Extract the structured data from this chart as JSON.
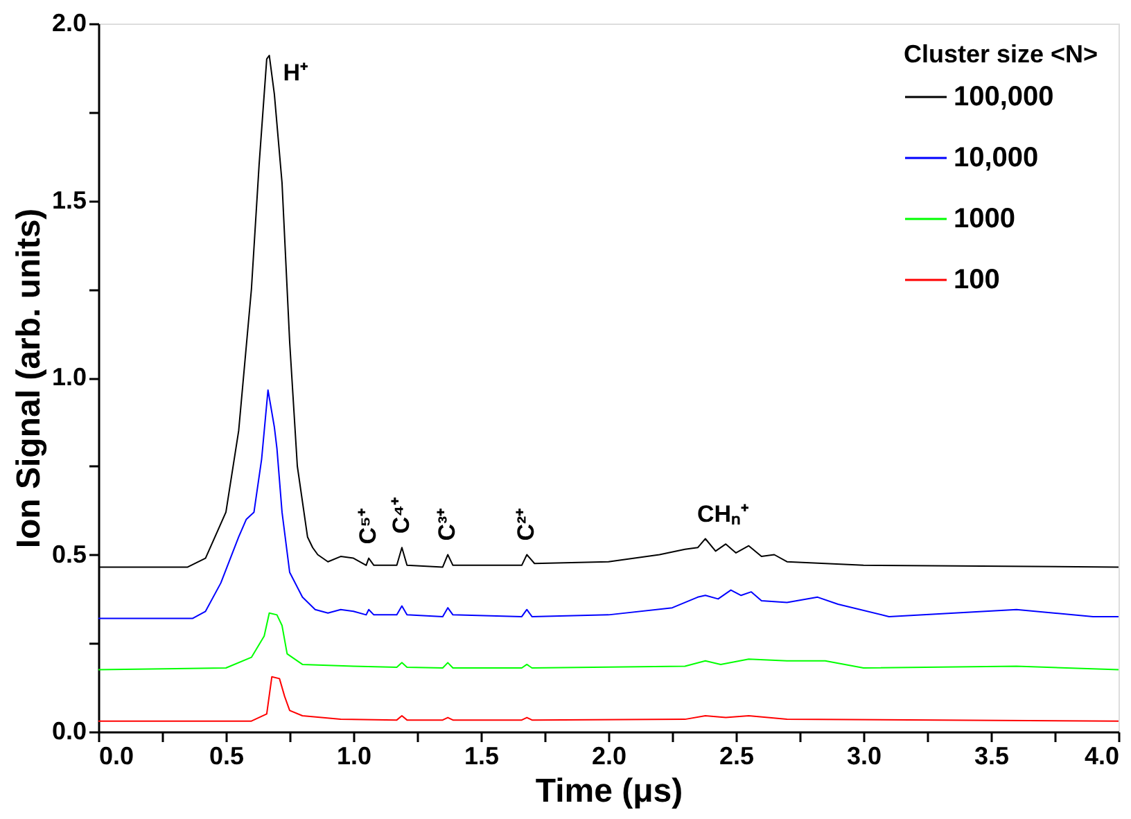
{
  "chart_data": {
    "type": "line",
    "xlabel": "Time (μs)",
    "ylabel": "Ion Signal (arb. units)",
    "legend_title": "Cluster size <N>",
    "legend": "top right",
    "grid": false,
    "line_style": "solid",
    "xlim": [
      0,
      4
    ],
    "ylim": [
      0,
      2
    ],
    "xticks": [
      {
        "value": 0,
        "label": "0.0"
      },
      {
        "value": 0.25,
        "label": null
      },
      {
        "value": 0.5,
        "label": "0.5"
      },
      {
        "value": 0.75,
        "label": null
      },
      {
        "value": 1,
        "label": "1.0"
      },
      {
        "value": 1.25,
        "label": null
      },
      {
        "value": 1.5,
        "label": "1.5"
      },
      {
        "value": 1.75,
        "label": null
      },
      {
        "value": 2,
        "label": "2.0"
      },
      {
        "value": 2.25,
        "label": null
      },
      {
        "value": 2.5,
        "label": "2.5"
      },
      {
        "value": 2.75,
        "label": null
      },
      {
        "value": 3,
        "label": "3.0"
      },
      {
        "value": 3.25,
        "label": null
      },
      {
        "value": 3.5,
        "label": "3.5"
      },
      {
        "value": 3.75,
        "label": null
      },
      {
        "value": 4,
        "label": "4.0"
      }
    ],
    "yticks": [
      {
        "value": 0,
        "label": "0.0"
      },
      {
        "value": 0.25,
        "label": null
      },
      {
        "value": 0.5,
        "label": "0.5"
      },
      {
        "value": 0.75,
        "label": null
      },
      {
        "value": 1,
        "label": "1.0"
      },
      {
        "value": 1.25,
        "label": null
      },
      {
        "value": 1.5,
        "label": "1.5"
      },
      {
        "value": 1.75,
        "label": null
      },
      {
        "value": 2,
        "label": "2.0"
      }
    ],
    "annotations": [
      {
        "text": "H⁺",
        "x": 0.67,
        "y": 1.91
      },
      {
        "text": "C⁵⁺",
        "x": 1.06,
        "y": 0.49
      },
      {
        "text": "C⁴⁺",
        "x": 1.19,
        "y": 0.52
      },
      {
        "text": "C³⁺",
        "x": 1.37,
        "y": 0.5
      },
      {
        "text": "C²⁺",
        "x": 1.68,
        "y": 0.5
      },
      {
        "text": "CHₙ⁺",
        "x": 2.45,
        "y": 0.53
      }
    ],
    "series": [
      {
        "name": "100,000",
        "color": "#000000",
        "x": [
          0,
          0.35,
          0.42,
          0.5,
          0.55,
          0.6,
          0.63,
          0.66,
          0.67,
          0.69,
          0.72,
          0.75,
          0.78,
          0.82,
          0.84,
          0.86,
          0.9,
          0.95,
          1.0,
          1.05,
          1.06,
          1.08,
          1.17,
          1.19,
          1.21,
          1.35,
          1.37,
          1.39,
          1.66,
          1.68,
          1.71,
          2.0,
          2.2,
          2.3,
          2.35,
          2.38,
          2.42,
          2.46,
          2.5,
          2.55,
          2.6,
          2.65,
          2.7,
          3.0,
          4.0
        ],
        "values": [
          0.465,
          0.465,
          0.49,
          0.62,
          0.85,
          1.25,
          1.6,
          1.9,
          1.91,
          1.8,
          1.55,
          1.1,
          0.75,
          0.55,
          0.52,
          0.5,
          0.48,
          0.495,
          0.49,
          0.47,
          0.49,
          0.47,
          0.47,
          0.52,
          0.47,
          0.465,
          0.5,
          0.47,
          0.47,
          0.5,
          0.475,
          0.48,
          0.5,
          0.515,
          0.52,
          0.545,
          0.51,
          0.53,
          0.505,
          0.525,
          0.495,
          0.5,
          0.48,
          0.47,
          0.465
        ]
      },
      {
        "name": "10,000",
        "color": "#0000ff",
        "x": [
          0,
          0.37,
          0.42,
          0.48,
          0.55,
          0.58,
          0.61,
          0.64,
          0.665,
          0.69,
          0.7,
          0.72,
          0.75,
          0.8,
          0.85,
          0.9,
          0.95,
          1.0,
          1.05,
          1.06,
          1.08,
          1.17,
          1.19,
          1.21,
          1.35,
          1.37,
          1.39,
          1.66,
          1.68,
          1.7,
          2.0,
          2.25,
          2.35,
          2.38,
          2.43,
          2.48,
          2.52,
          2.56,
          2.6,
          2.7,
          2.82,
          2.9,
          3.1,
          3.6,
          3.9,
          4.0
        ],
        "values": [
          0.32,
          0.32,
          0.34,
          0.42,
          0.55,
          0.6,
          0.62,
          0.77,
          0.965,
          0.86,
          0.8,
          0.62,
          0.45,
          0.38,
          0.345,
          0.335,
          0.345,
          0.34,
          0.33,
          0.345,
          0.33,
          0.33,
          0.355,
          0.33,
          0.325,
          0.35,
          0.33,
          0.325,
          0.345,
          0.325,
          0.33,
          0.35,
          0.38,
          0.385,
          0.375,
          0.4,
          0.385,
          0.395,
          0.37,
          0.365,
          0.38,
          0.36,
          0.325,
          0.345,
          0.325,
          0.325
        ]
      },
      {
        "name": "1000",
        "color": "#00ff00",
        "x": [
          0,
          0.5,
          0.6,
          0.65,
          0.67,
          0.7,
          0.72,
          0.74,
          0.8,
          1.0,
          1.17,
          1.19,
          1.21,
          1.35,
          1.37,
          1.39,
          1.66,
          1.68,
          1.7,
          2.3,
          2.38,
          2.44,
          2.55,
          2.7,
          2.85,
          3.0,
          3.6,
          4.0
        ],
        "values": [
          0.175,
          0.18,
          0.21,
          0.27,
          0.335,
          0.33,
          0.3,
          0.22,
          0.19,
          0.185,
          0.182,
          0.195,
          0.182,
          0.18,
          0.195,
          0.18,
          0.18,
          0.19,
          0.18,
          0.185,
          0.2,
          0.19,
          0.205,
          0.2,
          0.2,
          0.18,
          0.185,
          0.175
        ]
      },
      {
        "name": "100",
        "color": "#ff0000",
        "x": [
          0,
          0.6,
          0.66,
          0.68,
          0.71,
          0.73,
          0.75,
          0.8,
          0.95,
          1.17,
          1.19,
          1.21,
          1.35,
          1.37,
          1.39,
          1.66,
          1.68,
          1.7,
          2.3,
          2.38,
          2.46,
          2.55,
          2.7,
          4.0
        ],
        "values": [
          0.03,
          0.03,
          0.05,
          0.155,
          0.15,
          0.1,
          0.06,
          0.045,
          0.035,
          0.033,
          0.045,
          0.033,
          0.033,
          0.04,
          0.033,
          0.033,
          0.04,
          0.033,
          0.035,
          0.045,
          0.04,
          0.045,
          0.035,
          0.03
        ]
      }
    ]
  }
}
